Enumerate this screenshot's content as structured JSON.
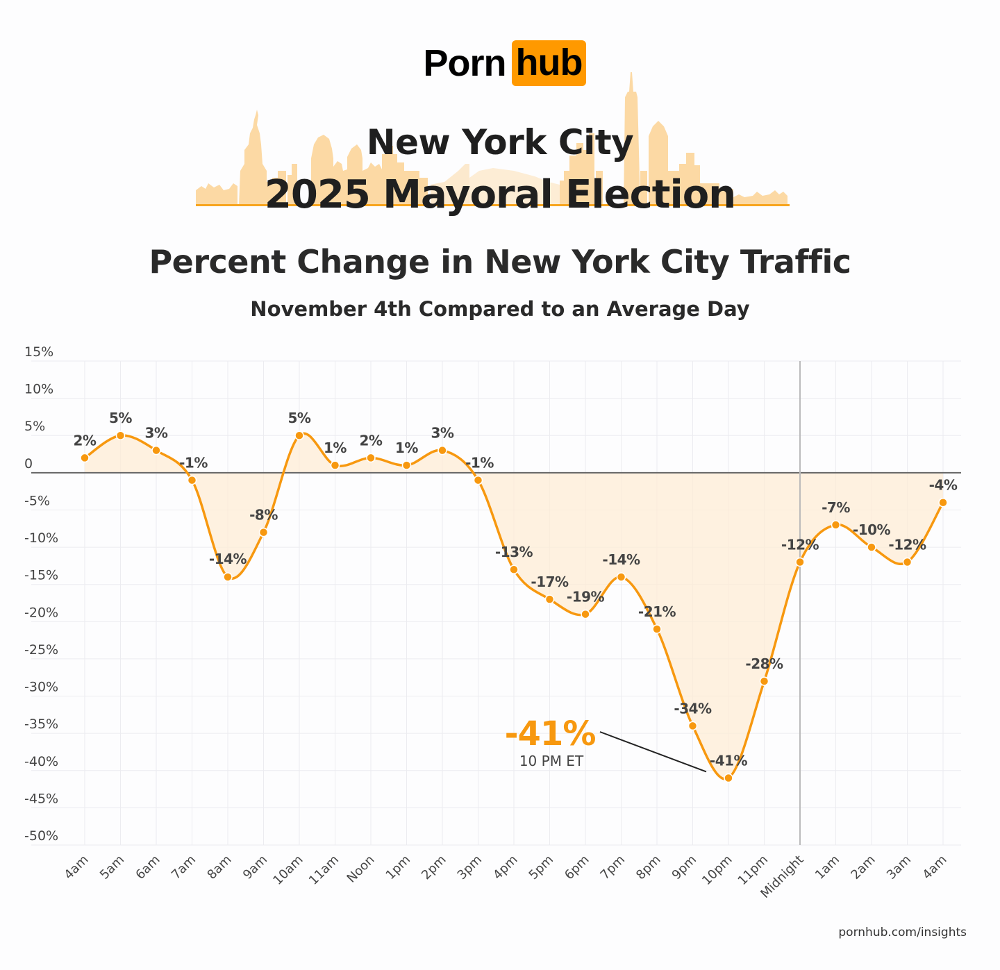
{
  "brand": {
    "logo_left": "Porn",
    "logo_right": "hub",
    "accent": "#ff9900",
    "footer_link": "pornhub.com/insights"
  },
  "hero": {
    "line1": "New York City",
    "line2": "2025 Mayoral Election",
    "skyline_color": "#fcd9a4"
  },
  "chart_data": {
    "type": "line",
    "title": "Percent Change in New York City Traffic",
    "subtitle": "November 4th Compared to an Average Day",
    "xlabel": "",
    "ylabel": "",
    "categories": [
      "4am",
      "5am",
      "6am",
      "7am",
      "8am",
      "9am",
      "10am",
      "11am",
      "Noon",
      "1pm",
      "2pm",
      "3pm",
      "4pm",
      "5pm",
      "6pm",
      "7pm",
      "8pm",
      "9pm",
      "10pm",
      "11pm",
      "Midnight",
      "1am",
      "2am",
      "3am",
      "4am"
    ],
    "values": [
      2,
      5,
      3,
      -1,
      -14,
      -8,
      5,
      1,
      2,
      1,
      3,
      -1,
      -13,
      -17,
      -19,
      -14,
      -21,
      -34,
      -41,
      -28,
      -12,
      -7,
      -10,
      -12,
      -4
    ],
    "data_labels": [
      "2%",
      "5%",
      "3%",
      "-1%",
      "-14%",
      "-8%",
      "5%",
      "1%",
      "2%",
      "1%",
      "3%",
      "-1%",
      "-13%",
      "-17%",
      "-19%",
      "-14%",
      "-21%",
      "-34%",
      "-41%",
      "-28%",
      "-12%",
      "-7%",
      "-10%",
      "-12%",
      "-4%"
    ],
    "y_ticks": [
      15,
      10,
      5,
      0,
      -5,
      -10,
      -15,
      -20,
      -25,
      -30,
      -35,
      -40,
      -45,
      -50
    ],
    "y_tick_labels": [
      "15%",
      "10%",
      "5%",
      "0",
      "-5%",
      "-10%",
      "-15%",
      "-20%",
      "-25%",
      "-30%",
      "-35%",
      "-40%",
      "-45%",
      "-50%"
    ],
    "ylim": [
      -50,
      15
    ],
    "grid": true,
    "legend": null,
    "divider_at": "Midnight",
    "line_color": "#f7980f",
    "fill_color": "#fdecd6",
    "annotation": {
      "value": "-41%",
      "label": "10 PM ET",
      "target": "10pm",
      "color": "#f7980f"
    }
  }
}
